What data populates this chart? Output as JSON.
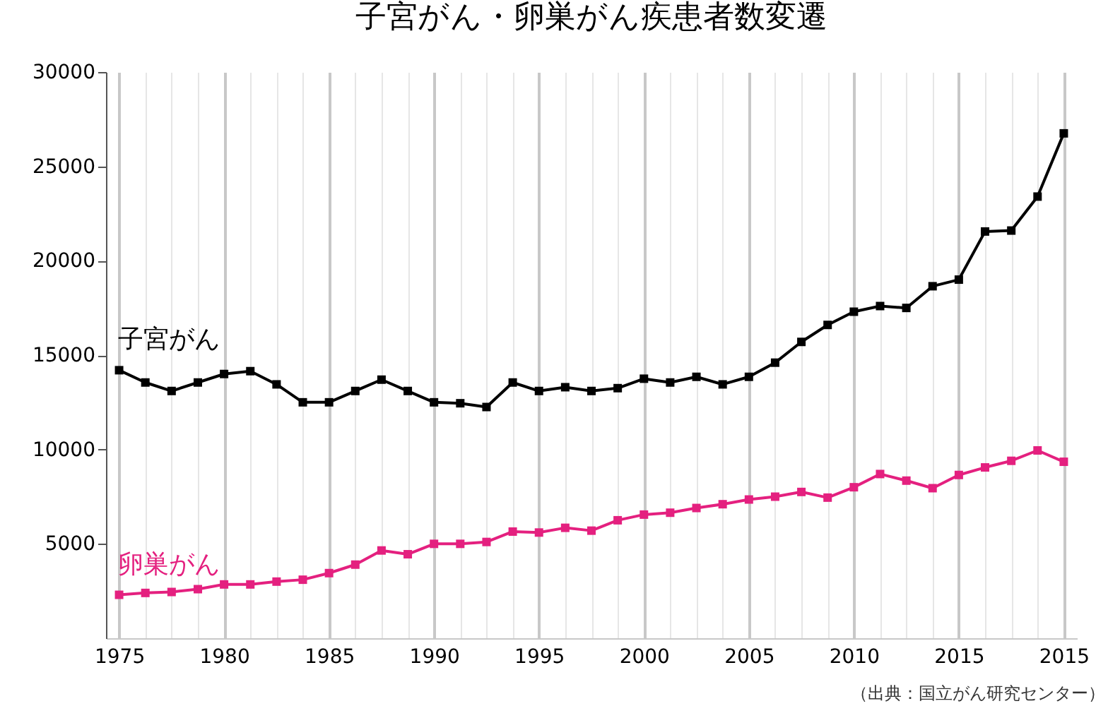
{
  "chart_data": {
    "type": "line",
    "title": "子宮がん・卵巣がん疾患者数変遷",
    "categories": [
      "1975",
      null,
      null,
      null,
      "1980",
      null,
      null,
      null,
      "1985",
      null,
      null,
      null,
      "1990",
      null,
      null,
      null,
      "1995",
      null,
      null,
      null,
      "2000",
      null,
      null,
      null,
      "2005",
      null,
      null,
      null,
      "2010",
      null,
      null,
      null,
      "2015",
      null,
      null,
      null,
      "2015"
    ],
    "series": [
      {
        "name": "子宮がん",
        "color": "#000000",
        "values": [
          14200,
          13550,
          13100,
          13550,
          14000,
          14150,
          13450,
          12500,
          12500,
          13100,
          13700,
          13100,
          12500,
          12450,
          12250,
          13550,
          13100,
          13300,
          13100,
          13250,
          13750,
          13550,
          13850,
          13450,
          13850,
          14600,
          15700,
          16600,
          17300,
          17600,
          17500,
          18650,
          19000,
          21550,
          21600,
          23400,
          26750
        ]
      },
      {
        "name": "卵巣がん",
        "color": "#e4207f",
        "values": [
          2300,
          2400,
          2450,
          2600,
          2850,
          2850,
          3000,
          3100,
          3450,
          3900,
          4650,
          4450,
          5000,
          5000,
          5100,
          5650,
          5600,
          5850,
          5700,
          6250,
          6550,
          6650,
          6900,
          7100,
          7350,
          7500,
          7750,
          7450,
          8000,
          8700,
          8350,
          7950,
          8650,
          9050,
          9400,
          9950,
          9350
        ]
      }
    ],
    "ylim": [
      0,
      30000
    ],
    "yticks": [
      5000,
      10000,
      15000,
      20000,
      25000,
      30000
    ],
    "grid": "x",
    "marker": "square",
    "line_style": "solid",
    "annotations": [
      "（出典：国立がん研究センター）"
    ]
  }
}
